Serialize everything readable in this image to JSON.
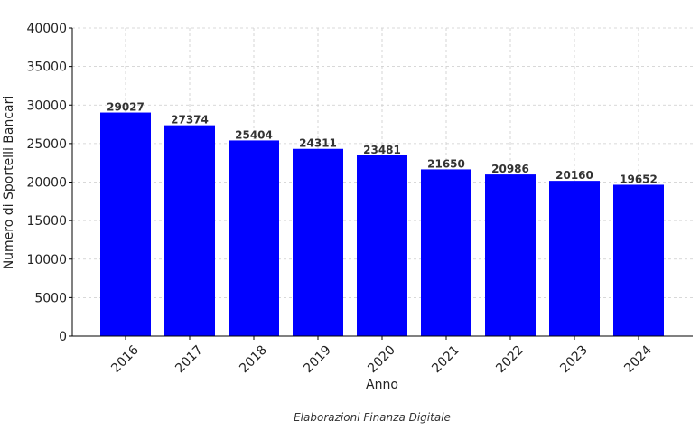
{
  "chart_data": {
    "type": "bar",
    "categories": [
      "2016",
      "2017",
      "2018",
      "2019",
      "2020",
      "2021",
      "2022",
      "2023",
      "2024"
    ],
    "values": [
      29027,
      27374,
      25404,
      24311,
      23481,
      21650,
      20986,
      20160,
      19652
    ],
    "xlabel": "Anno",
    "ylabel": "Numero di Sportelli Bancari",
    "ylim": [
      0,
      40000
    ],
    "yticks": [
      0,
      5000,
      10000,
      15000,
      20000,
      25000,
      30000,
      35000,
      40000
    ],
    "grid": true,
    "bar_color": "#0000ff",
    "credit": "Elaborazioni Finanza Digitale"
  }
}
